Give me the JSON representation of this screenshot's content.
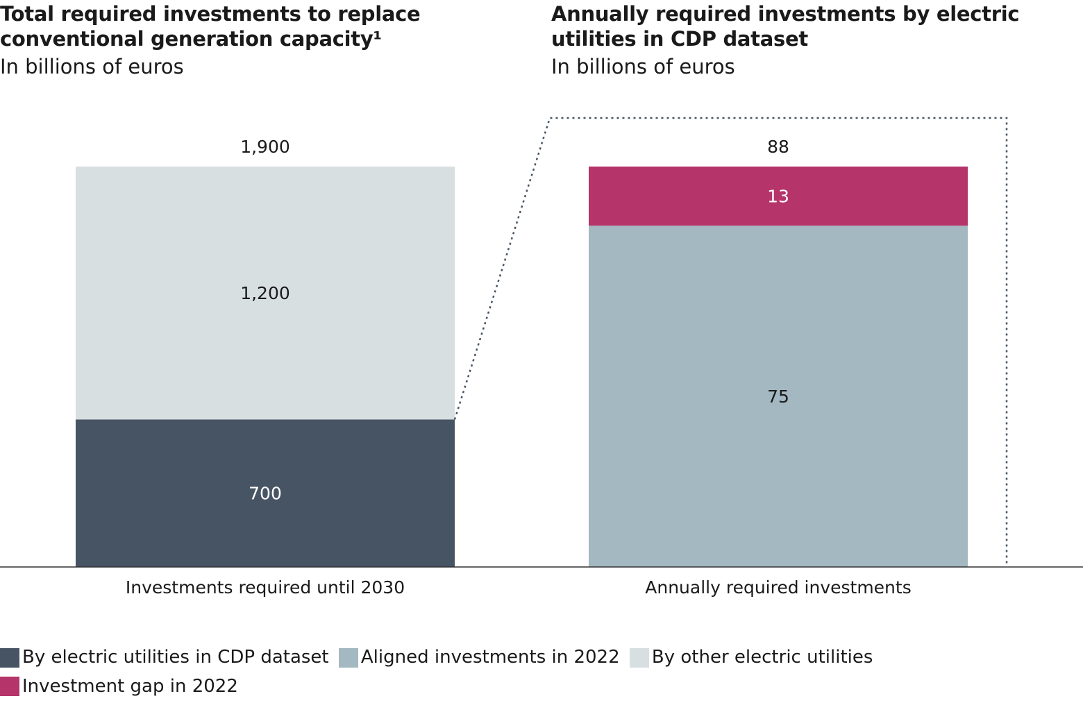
{
  "chart_data": [
    {
      "type": "bar",
      "stacked": true,
      "title": "Total required investments to replace conventional generation capacity¹",
      "subtitle": "In billions of euros",
      "categories": [
        "Investments required until 2030"
      ],
      "series": [
        {
          "name": "By electric utilities in CDP dataset",
          "values": [
            700
          ],
          "color": "#475464",
          "label_color": "#ffffff"
        },
        {
          "name": "By other electric utilities",
          "values": [
            1200
          ],
          "color": "#d7dfe1",
          "label_color": "#1a1a1a"
        }
      ],
      "total_labels": [
        "1,900"
      ],
      "value_labels": [
        "700",
        "1,200"
      ],
      "ylim": [
        0,
        1900
      ]
    },
    {
      "type": "bar",
      "stacked": true,
      "title": "Annually required investments by electric utilities in CDP dataset",
      "subtitle": "In billions of euros",
      "categories": [
        "Annually required investments"
      ],
      "series": [
        {
          "name": "Aligned investments in 2022",
          "values": [
            75
          ],
          "color": "#a3b8c0",
          "label_color": "#1a1a1a"
        },
        {
          "name": "Investment gap in 2022",
          "values": [
            13
          ],
          "color": "#b5346a",
          "label_color": "#ffffff"
        }
      ],
      "total_labels": [
        "88"
      ],
      "value_labels": [
        "75",
        "13"
      ],
      "ylim": [
        0,
        88
      ]
    }
  ],
  "legend": [
    {
      "label": "By electric utilities in CDP dataset",
      "color": "#475464"
    },
    {
      "label": "Aligned investments in 2022",
      "color": "#a3b8c0"
    },
    {
      "label": "By other electric utilities",
      "color": "#d7dfe1"
    },
    {
      "label": "Investment gap in 2022",
      "color": "#b5346a"
    }
  ]
}
